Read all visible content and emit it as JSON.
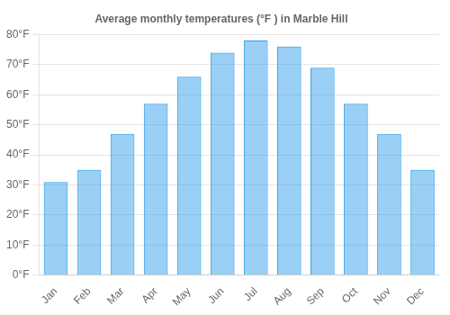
{
  "chart_data": {
    "type": "bar",
    "title": "Average monthly temperatures (°F ) in Marble Hill",
    "categories": [
      "Jan",
      "Feb",
      "Mar",
      "Apr",
      "May",
      "Jun",
      "Jul",
      "Aug",
      "Sep",
      "Oct",
      "Nov",
      "Dec"
    ],
    "values": [
      31,
      35,
      47,
      57,
      66,
      74,
      78,
      76,
      69,
      57,
      47,
      35
    ],
    "ylim": [
      0,
      80
    ],
    "yticks": [
      {
        "value": 0,
        "label": "0°F"
      },
      {
        "value": 10,
        "label": "10°F"
      },
      {
        "value": 20,
        "label": "20°F"
      },
      {
        "value": 30,
        "label": "30°F"
      },
      {
        "value": 40,
        "label": "40°F"
      },
      {
        "value": 50,
        "label": "50°F"
      },
      {
        "value": 60,
        "label": "60°F"
      },
      {
        "value": 70,
        "label": "70°F"
      },
      {
        "value": 80,
        "label": "80°F"
      }
    ],
    "grid": true
  }
}
